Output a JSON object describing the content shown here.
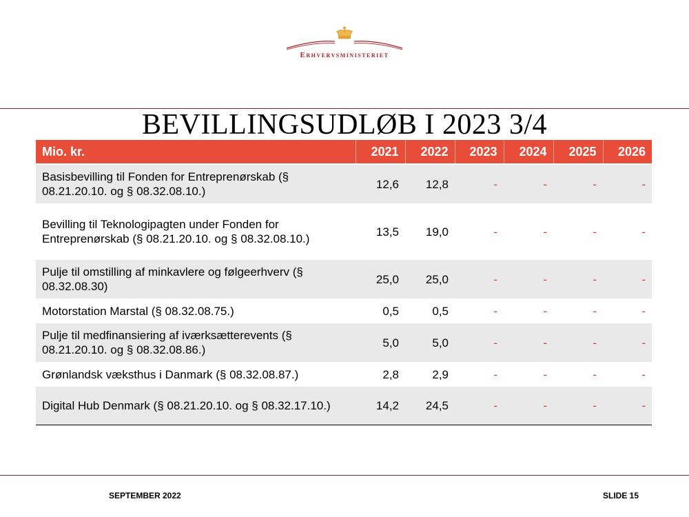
{
  "header": {
    "logo_text": "Erhvervsministeriet",
    "icon": "crown-icon"
  },
  "title": "BEVILLINGSUDLØB I 2023 3/4",
  "table": {
    "columns": [
      "Mio. kr.",
      "2021",
      "2022",
      "2023",
      "2024",
      "2025",
      "2026"
    ],
    "rows": [
      [
        "Basisbevilling til Fonden for Entreprenørskab (§ 08.21.20.10. og § 08.32.08.10.)",
        "12,6",
        "12,8",
        "-",
        "-",
        "-",
        "-"
      ],
      [
        "Bevilling til Teknologipagten under Fonden for Entreprenørskab (§ 08.21.20.10. og § 08.32.08.10.)",
        "13,5",
        "19,0",
        "-",
        "-",
        "-",
        "-"
      ],
      [
        "Pulje til omstilling af minkavlere og følgeerhverv (§ 08.32.08.30)",
        "25,0",
        "25,0",
        "-",
        "-",
        "-",
        "-"
      ],
      [
        "Motorstation Marstal (§ 08.32.08.75.)",
        "0,5",
        "0,5",
        "-",
        "-",
        "-",
        "-"
      ],
      [
        "Pulje til medfinansiering af iværksætterevents (§ 08.21.20.10. og § 08.32.08.86.)",
        "5,0",
        "5,0",
        "-",
        "-",
        "-",
        "-"
      ],
      [
        "Grønlandsk væksthus i Danmark (§ 08.32.08.87.)",
        "2,8",
        "2,9",
        "-",
        "-",
        "-",
        "-"
      ],
      [
        "Digital Hub Denmark (§ 08.21.20.10. og § 08.32.17.10.)",
        "14,2",
        "24,5",
        "-",
        "-",
        "-",
        "-"
      ]
    ]
  },
  "footer": {
    "date": "SEPTEMBER 2022",
    "slide": "SLIDE 15"
  },
  "colors": {
    "header_bg": "#e84d3a",
    "accent_dash": "#e2372a",
    "rule": "#8b2630",
    "row_shade": "#e9e9e9",
    "logo": "#b01e23"
  }
}
